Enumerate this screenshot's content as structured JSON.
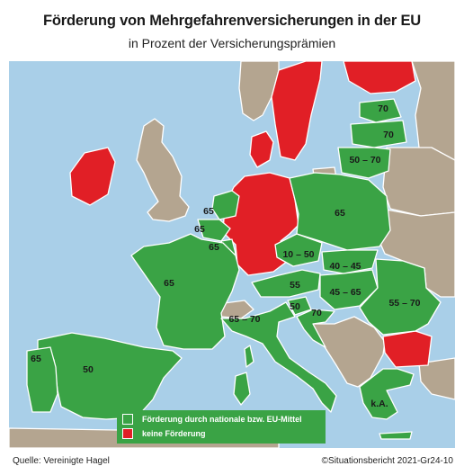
{
  "title": "Förderung von Mehrgefahrenversicherungen in der EU",
  "subtitle": "in Prozent der Versicherungsprämien",
  "colors": {
    "sea": "#a9cfe8",
    "funded": "#3aa345",
    "none": "#e11f26",
    "non_eu": "#b4a590",
    "legend_bg": "#3aa345"
  },
  "legend": [
    {
      "label": "Förderung durch nationale bzw. EU-Mittel",
      "color": "#3aa345"
    },
    {
      "label": "keine Förderung",
      "color": "#e11f26"
    }
  ],
  "countries": {
    "ireland": {
      "status": "keine Förderung"
    },
    "denmark": {
      "status": "keine Förderung"
    },
    "sweden": {
      "status": "keine Förderung"
    },
    "finland": {
      "status": "keine Förderung"
    },
    "germany": {
      "status": "keine Förderung"
    },
    "bulgaria": {
      "status": "keine Förderung"
    },
    "estonia": {
      "value": "70"
    },
    "latvia": {
      "value": "70"
    },
    "lithuania": {
      "value": "50 – 70"
    },
    "poland": {
      "value": "65"
    },
    "netherlands": {
      "value": "65"
    },
    "belgium": {
      "value": "65"
    },
    "luxembourg": {
      "value": "65"
    },
    "czechia": {
      "value": "10 – 50"
    },
    "slovakia": {
      "value": "40 – 45"
    },
    "austria": {
      "value": "55"
    },
    "hungary": {
      "value": "45 – 65"
    },
    "romania": {
      "value": "55 – 70"
    },
    "france": {
      "value": "65"
    },
    "italy": {
      "value": "65 – 70"
    },
    "slovenia": {
      "value": "50"
    },
    "croatia": {
      "value": "70"
    },
    "portugal": {
      "value": "65"
    },
    "spain": {
      "value": "50"
    },
    "greece": {
      "value": "k.A."
    }
  },
  "source": "Quelle: Vereinigte Hagel",
  "credit": "©Situationsbericht 2021-Gr24-10"
}
